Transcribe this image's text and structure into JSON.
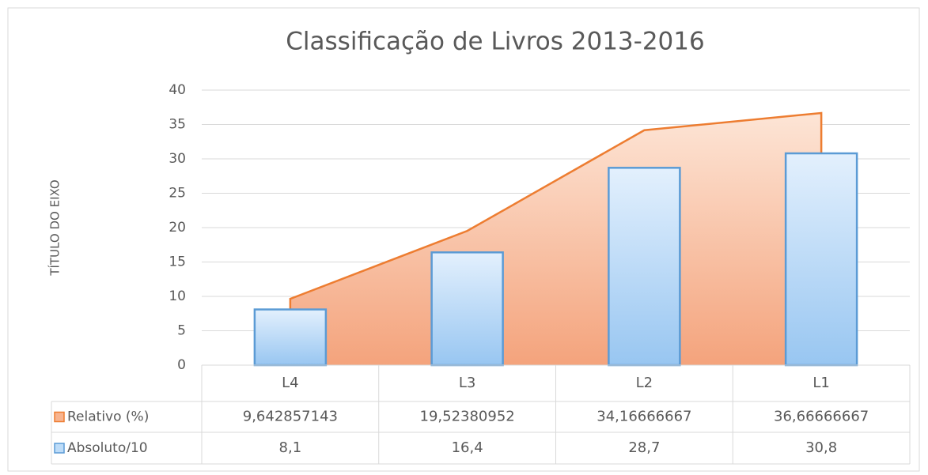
{
  "chart_data": {
    "type": "area-bar-table",
    "title": "Classificação de Livros 2013-2016",
    "y_axis_label": "TÍTULO DO EIXO",
    "categories": [
      "L4",
      "L3",
      "L2",
      "L1"
    ],
    "series": [
      {
        "name": "Relativo (%)",
        "type": "area",
        "color": "#ed7d31",
        "values": [
          9.642857143,
          19.52380952,
          34.16666667,
          36.66666667
        ],
        "value_labels": [
          "9,642857143",
          "19,52380952",
          "34,16666667",
          "36,66666667"
        ]
      },
      {
        "name": "Absoluto/10",
        "type": "bar",
        "color": "#5b9bd5",
        "values": [
          8.1,
          16.4,
          28.7,
          30.8
        ],
        "value_labels": [
          "8,1",
          "16,4",
          "28,7",
          "30,8"
        ]
      }
    ],
    "ylim": [
      0,
      40
    ],
    "yticks": [
      0,
      5,
      10,
      15,
      20,
      25,
      30,
      35,
      40
    ],
    "grid": true
  }
}
